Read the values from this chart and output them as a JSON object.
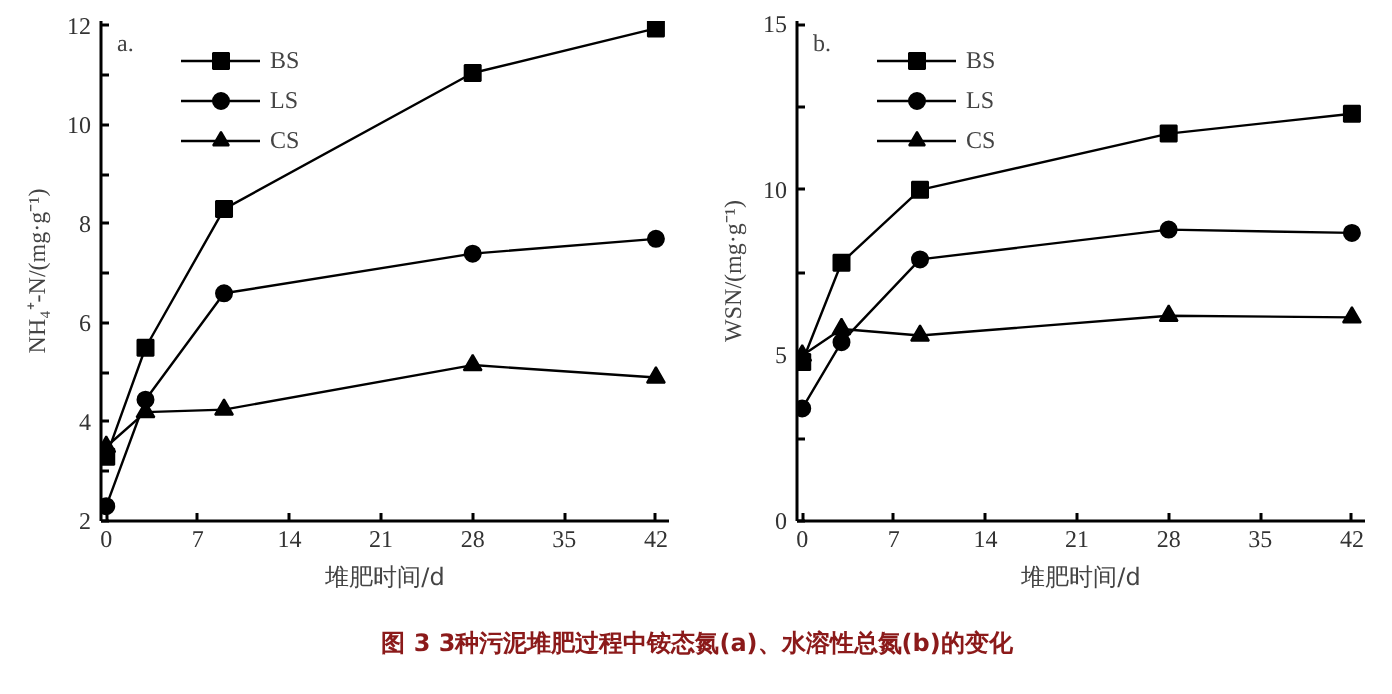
{
  "chart_data": [
    {
      "type": "line",
      "xlabel": "堆肥时间/d",
      "ylabel": "NH₄⁺-N/(mg·g⁻¹)",
      "annotations": [
        "a."
      ],
      "x": [
        0,
        3,
        9,
        28,
        42
      ],
      "xlim": [
        -0.4,
        43
      ],
      "xticks": [
        0,
        7,
        14,
        21,
        28,
        35,
        42
      ],
      "ylim": [
        2,
        12.1
      ],
      "yticks": [
        2,
        {
          "value": 3,
          "label": null
        },
        4,
        {
          "value": 5,
          "label": null
        },
        6,
        {
          "value": 7,
          "label": null
        },
        8,
        {
          "value": 9,
          "label": null
        },
        10,
        {
          "value": 11,
          "label": null
        },
        12
      ],
      "grid": false,
      "legend": "top left",
      "line_style": "solid",
      "series": [
        {
          "name": "BS",
          "color": "#000000",
          "marker": "square",
          "values": [
            3.3,
            5.5,
            8.3,
            11.05,
            11.95
          ]
        },
        {
          "name": "LS",
          "color": "#000000",
          "marker": "circle",
          "values": [
            2.3,
            4.45,
            6.6,
            7.4,
            7.7
          ]
        },
        {
          "name": "CS",
          "color": "#000000",
          "marker": "triangle",
          "values": [
            3.5,
            4.2,
            4.25,
            5.15,
            4.9
          ]
        }
      ]
    },
    {
      "type": "line",
      "xlabel": "堆肥时间/d",
      "ylabel": "WSN/(mg·g⁻¹)",
      "annotations": [
        "b.",
        "图 3 3种污泥堆肥过程中铵态氮(a)、水溶性总氮(b)的变化"
      ],
      "x": [
        0,
        3,
        9,
        28,
        42
      ],
      "xlim": [
        -0.4,
        43
      ],
      "xticks": [
        0,
        7,
        14,
        21,
        28,
        35,
        42
      ],
      "ylim": [
        0,
        15.1
      ],
      "yticks": [
        0,
        {
          "value": 2.5,
          "label": null
        },
        5,
        {
          "value": 7.5,
          "label": null
        },
        10,
        {
          "value": 12.5,
          "label": null
        },
        15
      ],
      "grid": false,
      "legend": "top left",
      "line_style": "solid",
      "series": [
        {
          "name": "BS",
          "color": "#000000",
          "marker": "square",
          "values": [
            4.8,
            7.8,
            10.0,
            11.7,
            12.3
          ]
        },
        {
          "name": "LS",
          "color": "#000000",
          "marker": "circle",
          "values": [
            3.4,
            5.4,
            7.9,
            8.8,
            8.7
          ]
        },
        {
          "name": "CS",
          "color": "#000000",
          "marker": "triangle",
          "values": [
            5.0,
            5.8,
            5.6,
            6.2,
            6.15
          ]
        }
      ]
    }
  ]
}
